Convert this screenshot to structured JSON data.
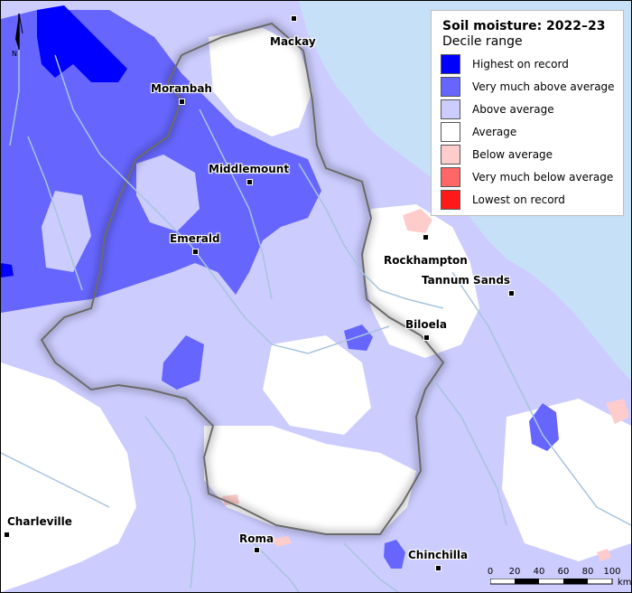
{
  "legend": {
    "title": "Soil moisture: 2022–23",
    "subtitle": "Decile range",
    "items": [
      {
        "label": "Highest on record",
        "color": "#0000ff"
      },
      {
        "label": "Very much above average",
        "color": "#6666ff"
      },
      {
        "label": "Above average",
        "color": "#ccccff"
      },
      {
        "label": "Average",
        "color": "#ffffff"
      },
      {
        "label": "Below average",
        "color": "#ffcccc"
      },
      {
        "label": "Very much below average",
        "color": "#ff6666"
      },
      {
        "label": "Lowest on record",
        "color": "#ff1a1a"
      }
    ]
  },
  "towns": [
    {
      "name": "Mackay"
    },
    {
      "name": "Moranbah"
    },
    {
      "name": "Middlemount"
    },
    {
      "name": "Emerald"
    },
    {
      "name": "Rockhampton"
    },
    {
      "name": "Tannum Sands"
    },
    {
      "name": "Biloela"
    },
    {
      "name": "Charleville"
    },
    {
      "name": "Roma"
    },
    {
      "name": "Chinchilla"
    }
  ],
  "north_arrow": {
    "label": "N"
  },
  "scale_bar": {
    "ticks": [
      "0",
      "20",
      "40",
      "60",
      "80",
      "100"
    ],
    "unit": "km"
  },
  "colors": {
    "ocean": "#c6e0f7",
    "river": "#a8c4dc"
  }
}
